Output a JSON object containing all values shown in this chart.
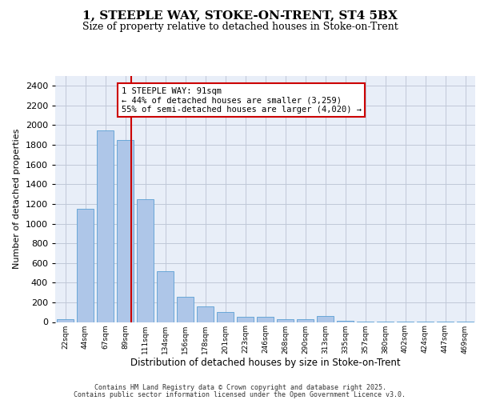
{
  "title1": "1, STEEPLE WAY, STOKE-ON-TRENT, ST4 5BX",
  "title2": "Size of property relative to detached houses in Stoke-on-Trent",
  "xlabel": "Distribution of detached houses by size in Stoke-on-Trent",
  "ylabel": "Number of detached properties",
  "categories": [
    "22sqm",
    "44sqm",
    "67sqm",
    "89sqm",
    "111sqm",
    "134sqm",
    "156sqm",
    "178sqm",
    "201sqm",
    "223sqm",
    "246sqm",
    "268sqm",
    "290sqm",
    "313sqm",
    "335sqm",
    "357sqm",
    "380sqm",
    "402sqm",
    "424sqm",
    "447sqm",
    "469sqm"
  ],
  "values": [
    30,
    1150,
    1950,
    1850,
    1250,
    520,
    260,
    160,
    100,
    50,
    50,
    25,
    25,
    60,
    10,
    5,
    5,
    2,
    2,
    2,
    2
  ],
  "bar_color": "#aec6e8",
  "bar_edge_color": "#5a9fd4",
  "highlight_index": 3,
  "highlight_line_color": "#cc0000",
  "annotation_text": "1 STEEPLE WAY: 91sqm\n← 44% of detached houses are smaller (3,259)\n55% of semi-detached houses are larger (4,020) →",
  "ylim": [
    0,
    2500
  ],
  "yticks": [
    0,
    200,
    400,
    600,
    800,
    1000,
    1200,
    1400,
    1600,
    1800,
    2000,
    2200,
    2400
  ],
  "grid_color": "#c0c8d8",
  "bg_color": "#e8eef8",
  "footer_line1": "Contains HM Land Registry data © Crown copyright and database right 2025.",
  "footer_line2": "Contains public sector information licensed under the Open Government Licence v3.0."
}
